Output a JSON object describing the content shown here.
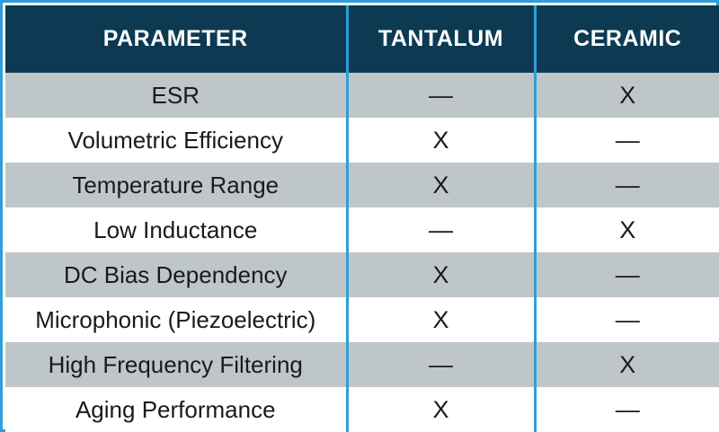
{
  "table": {
    "headers": [
      "PARAMETER",
      "TANTALUM",
      "CERAMIC"
    ],
    "rows": [
      [
        "ESR",
        "—",
        "X"
      ],
      [
        "Volumetric Efficiency",
        "X",
        "—"
      ],
      [
        "Temperature Range",
        "X",
        "—"
      ],
      [
        "Low Inductance",
        "—",
        "X"
      ],
      [
        "DC Bias Dependency",
        "X",
        "—"
      ],
      [
        "Microphonic (Piezoelectric)",
        "X",
        "—"
      ],
      [
        "High Frequency Filtering",
        "—",
        "X"
      ],
      [
        "Aging Performance",
        "X",
        "—"
      ]
    ]
  },
  "colors": {
    "header_bg": "#0d3a52",
    "header_text": "#ffffff",
    "border": "#2f9fd8",
    "shaded_row": "#bfc6c9",
    "plain_row": "#ffffff"
  }
}
